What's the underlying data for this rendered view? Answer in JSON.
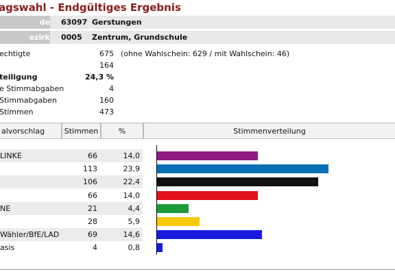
{
  "title": "agswahl - Endgültiges Ergebnis",
  "header": {
    "rows": [
      {
        "label": "de",
        "code": "63097",
        "name": "Gerstungen"
      },
      {
        "label": "ezirk",
        "code": "0005",
        "name": "Zentrum, Grundschule"
      }
    ]
  },
  "stats": [
    {
      "label": "echtigte",
      "value": "675",
      "note": "(ohne Wahlschein: 629 / mit Wahlschein: 46)",
      "bold": false
    },
    {
      "label": "",
      "value": "164",
      "note": "",
      "bold": false
    },
    {
      "label": "teiligung",
      "value": "24,3 %",
      "note": "",
      "bold": true
    },
    {
      "label": "e Stimmabgaben",
      "value": "4",
      "note": "",
      "bold": false
    },
    {
      "label": "Stimmabgaben",
      "value": "160",
      "note": "",
      "bold": false
    },
    {
      "label": "Stimmen",
      "value": "473",
      "note": "",
      "bold": false
    }
  ],
  "table": {
    "headers": {
      "party": "alvorschlag",
      "votes": "Stimmen",
      "pct": "%",
      "dist": "Stimmenverteilung"
    },
    "rows": [
      {
        "party": "LINKE",
        "votes": "66",
        "pct": "14,0",
        "share": 14.0,
        "color": "#8e1a82"
      },
      {
        "party": "",
        "votes": "113",
        "pct": "23,9",
        "share": 23.9,
        "color": "#0a6fb5"
      },
      {
        "party": "",
        "votes": "106",
        "pct": "22,4",
        "share": 22.4,
        "color": "#111111"
      },
      {
        "party": "",
        "votes": "66",
        "pct": "14,0",
        "share": 14.0,
        "color": "#e3101b"
      },
      {
        "party": "NE",
        "votes": "21",
        "pct": "4,4",
        "share": 4.4,
        "color": "#1b9a3a"
      },
      {
        "party": "",
        "votes": "28",
        "pct": "5,9",
        "share": 5.9,
        "color": "#f7c90a"
      },
      {
        "party": " Wähler/BfE/LAD",
        "votes": "69",
        "pct": "14,6",
        "share": 14.6,
        "color": "#1a1ae0"
      },
      {
        "party": "asis",
        "votes": "4",
        "pct": "0,8",
        "share": 0.8,
        "color": "#1a1ae0"
      }
    ]
  }
}
